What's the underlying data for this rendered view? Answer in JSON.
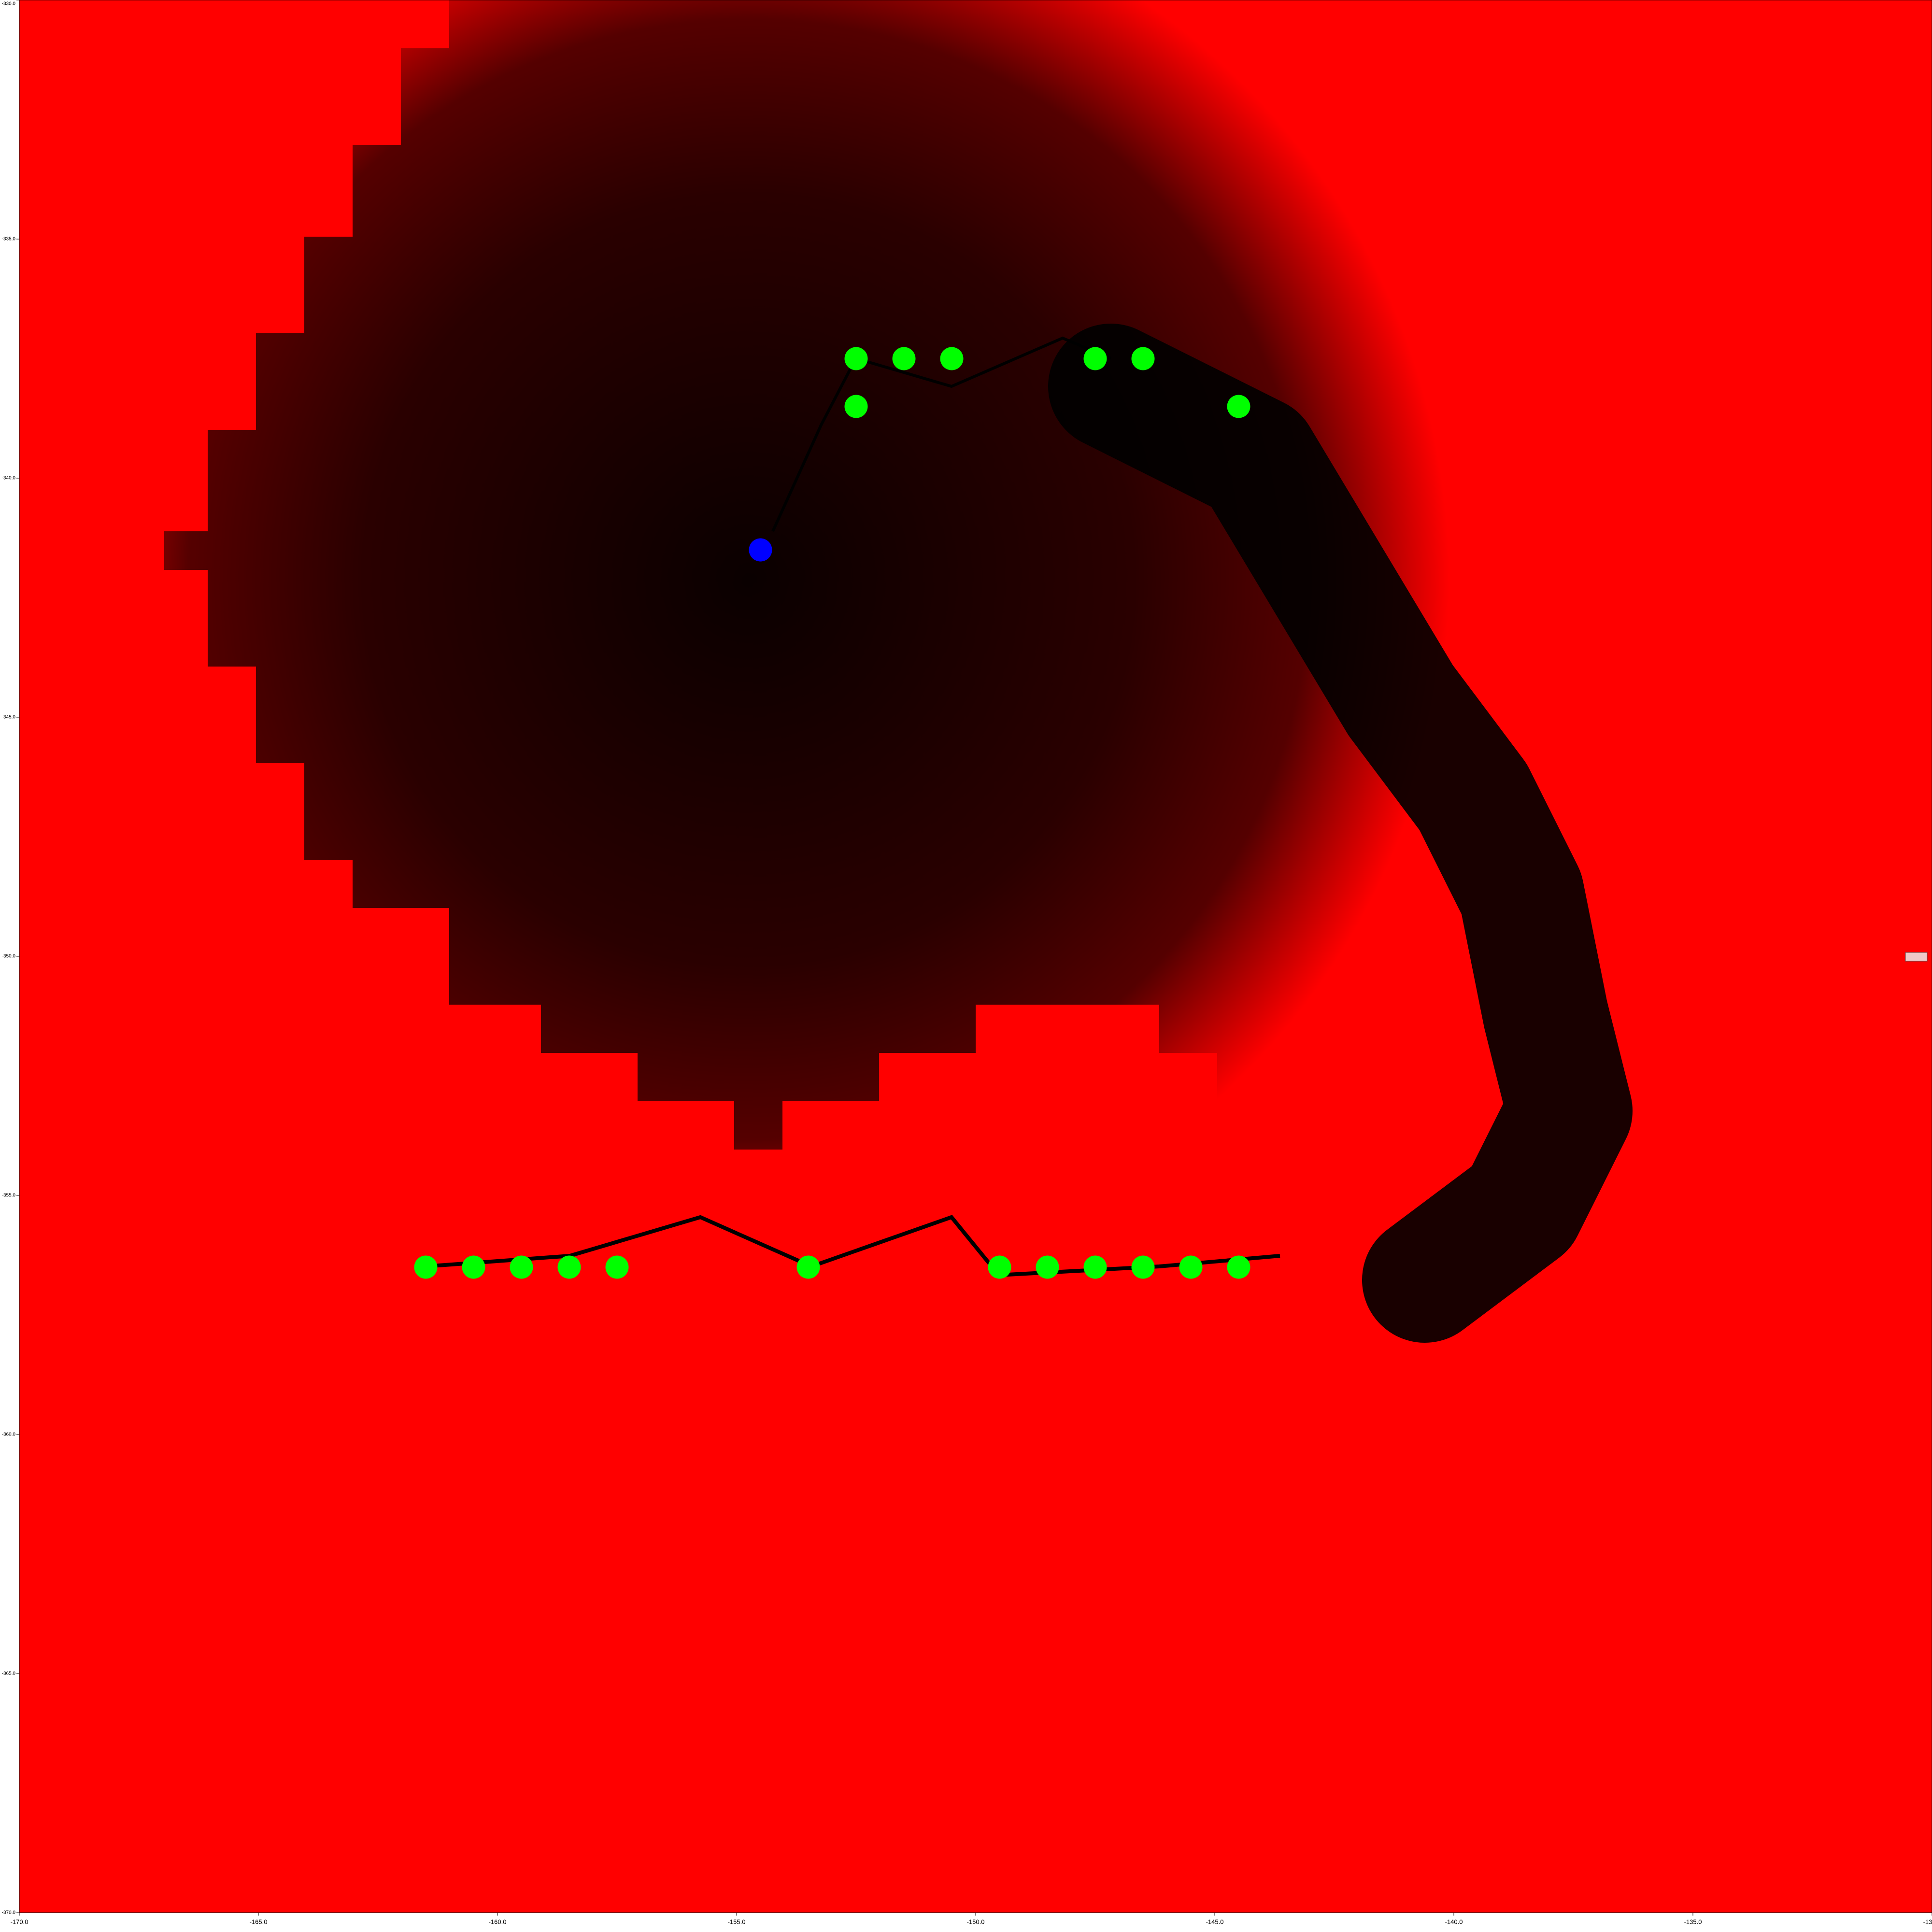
{
  "chart_data": {
    "type": "scatter",
    "xlim": [
      -170,
      -130
    ],
    "ylim": [
      -370,
      -330
    ],
    "xticks": [
      {
        "value": -170,
        "label": "-170.0"
      },
      {
        "value": -165,
        "label": "-165.0"
      },
      {
        "value": -160,
        "label": "-160.0"
      },
      {
        "value": -155,
        "label": "-155.0"
      },
      {
        "value": -150,
        "label": "-150.0"
      },
      {
        "value": -145,
        "label": "-145.0"
      },
      {
        "value": -140,
        "label": "-140.0"
      },
      {
        "value": -135,
        "label": "-135.0"
      },
      {
        "value": -130,
        "label": "-130.0"
      }
    ],
    "yticks": [
      {
        "value": -370,
        "label": "-370.0"
      },
      {
        "value": -365,
        "label": "-365.0"
      },
      {
        "value": -360,
        "label": "-360.0"
      },
      {
        "value": -355,
        "label": "-355.0"
      },
      {
        "value": -350,
        "label": "-350.0"
      },
      {
        "value": -345,
        "label": "-345.0"
      },
      {
        "value": -340,
        "label": "-340.0"
      },
      {
        "value": -335,
        "label": "-335.0"
      },
      {
        "value": -330,
        "label": "-330.0"
      }
    ],
    "series": [
      {
        "color": "#00ff00",
        "x": [
          -152.5,
          -151.5,
          -150.5,
          -147.5,
          -146.5,
          -152.5,
          -144.5,
          -161.5,
          -160.5,
          -159.5,
          -158.5,
          -157.5,
          -153.5,
          -149.5,
          -148.5,
          -147.5,
          -146.5,
          -145.5,
          -144.5
        ],
        "values": [
          -337.5,
          -337.5,
          -337.5,
          -337.5,
          -337.5,
          -338.5,
          -338.5,
          -356.5,
          -356.5,
          -356.5,
          -356.5,
          -356.5,
          -356.5,
          -356.5,
          -356.5,
          -356.5,
          -356.5,
          -356.5,
          -356.5
        ]
      },
      {
        "color": "#0000ff",
        "x": [
          -154.5
        ],
        "values": [
          -341.5
        ]
      }
    ]
  }
}
